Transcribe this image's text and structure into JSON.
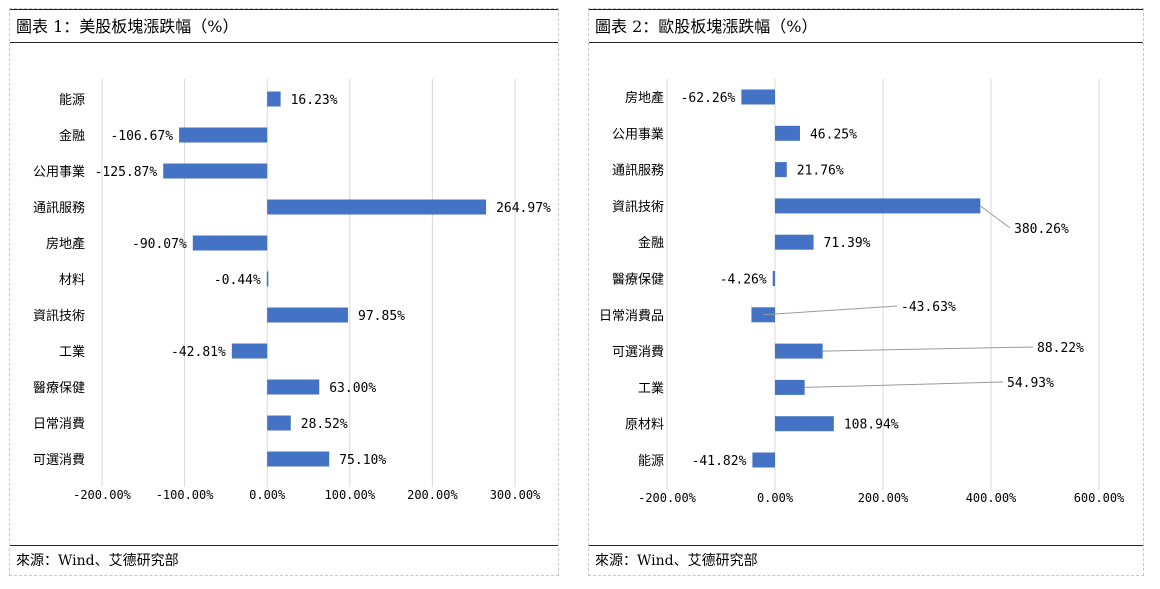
{
  "charts": [
    {
      "title": "圖表 1：美股板塊漲跌幅（%）",
      "source": "來源：Wind、艾德研究部"
    },
    {
      "title": "圖表 2：歐股板塊漲跌幅（%）",
      "source": "來源：Wind、艾德研究部"
    }
  ],
  "chart_data": [
    {
      "type": "bar",
      "orientation": "horizontal",
      "categories": [
        "能源",
        "金融",
        "公用事業",
        "通訊服務",
        "房地產",
        "材料",
        "資訊技術",
        "工業",
        "醫療保健",
        "日常消費",
        "可選消費"
      ],
      "values": [
        16.23,
        -106.67,
        -125.87,
        264.97,
        -90.07,
        -0.44,
        97.85,
        -42.81,
        63.0,
        28.52,
        75.1
      ],
      "data_labels": [
        "16.23%",
        "-106.67%",
        "-125.87%",
        "264.97%",
        "-90.07%",
        "-0.44%",
        "97.85%",
        "-42.81%",
        "63.00%",
        "28.52%",
        "75.10%"
      ],
      "xlim": [
        -200,
        300
      ],
      "xticks": [
        -200,
        -100,
        0,
        100,
        200,
        300
      ],
      "xtick_labels": [
        "-200.00%",
        "-100.00%",
        "0.00%",
        "100.00%",
        "200.00%",
        "300.00%"
      ],
      "bar_color": "#4472c4",
      "grid": true
    },
    {
      "type": "bar",
      "orientation": "horizontal",
      "categories": [
        "房地產",
        "公用事業",
        "通訊服務",
        "資訊技術",
        "金融",
        "醫療保健",
        "日常消費品",
        "可選消費",
        "工業",
        "原材料",
        "能源"
      ],
      "values": [
        -62.26,
        46.25,
        21.76,
        380.26,
        71.39,
        -4.26,
        -43.63,
        88.22,
        54.93,
        108.94,
        -41.82
      ],
      "data_labels": [
        "-62.26%",
        "46.25%",
        "21.76%",
        "380.26%",
        "71.39%",
        "-4.26%",
        "-43.63%",
        "88.22%",
        "54.93%",
        "108.94%",
        "-41.82%"
      ],
      "xlim": [
        -200,
        600
      ],
      "xticks": [
        -200,
        0,
        200,
        400,
        600
      ],
      "xtick_labels": [
        "-200.00%",
        "0.00%",
        "200.00%",
        "400.00%",
        "600.00%"
      ],
      "bar_color": "#4472c4",
      "grid": true
    }
  ]
}
